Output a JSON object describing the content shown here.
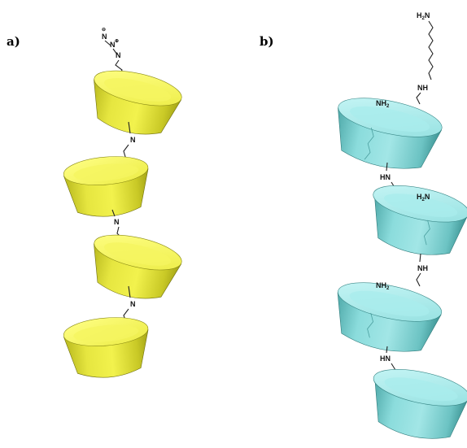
{
  "panels": {
    "a": {
      "label": "a)"
    },
    "b": {
      "label": "b)"
    }
  },
  "colors": {
    "yellow_top": "#ffff72",
    "yellow_side_light": "#e9e93c",
    "yellow_side_dark": "#a8a81a",
    "cyan_top": "#b5f1f1",
    "cyan_side_light": "#7fd6d6",
    "cyan_side_dark": "#3f9c9c"
  },
  "chem_labels": {
    "azide_n1": "N",
    "azide_n2": "N",
    "azide_n3": "N",
    "a_link_n1": "N",
    "a_link_n2": "N",
    "a_link_n3": "N",
    "b_h2n_top": "H",
    "b_h2n_top_sub": "2",
    "b_h2n_top_n": "N",
    "b_nh_top": "NH",
    "b_nh2_1": "NH",
    "b_nh2_1_sub": "2",
    "b_hn_1": "HN",
    "b_h2n_2": "H",
    "b_h2n_2_sub": "2",
    "b_h2n_2_n": "N",
    "b_nh_2": "NH",
    "b_nh2_3": "NH",
    "b_nh2_3_sub": "2",
    "b_hn_3": "HN"
  }
}
